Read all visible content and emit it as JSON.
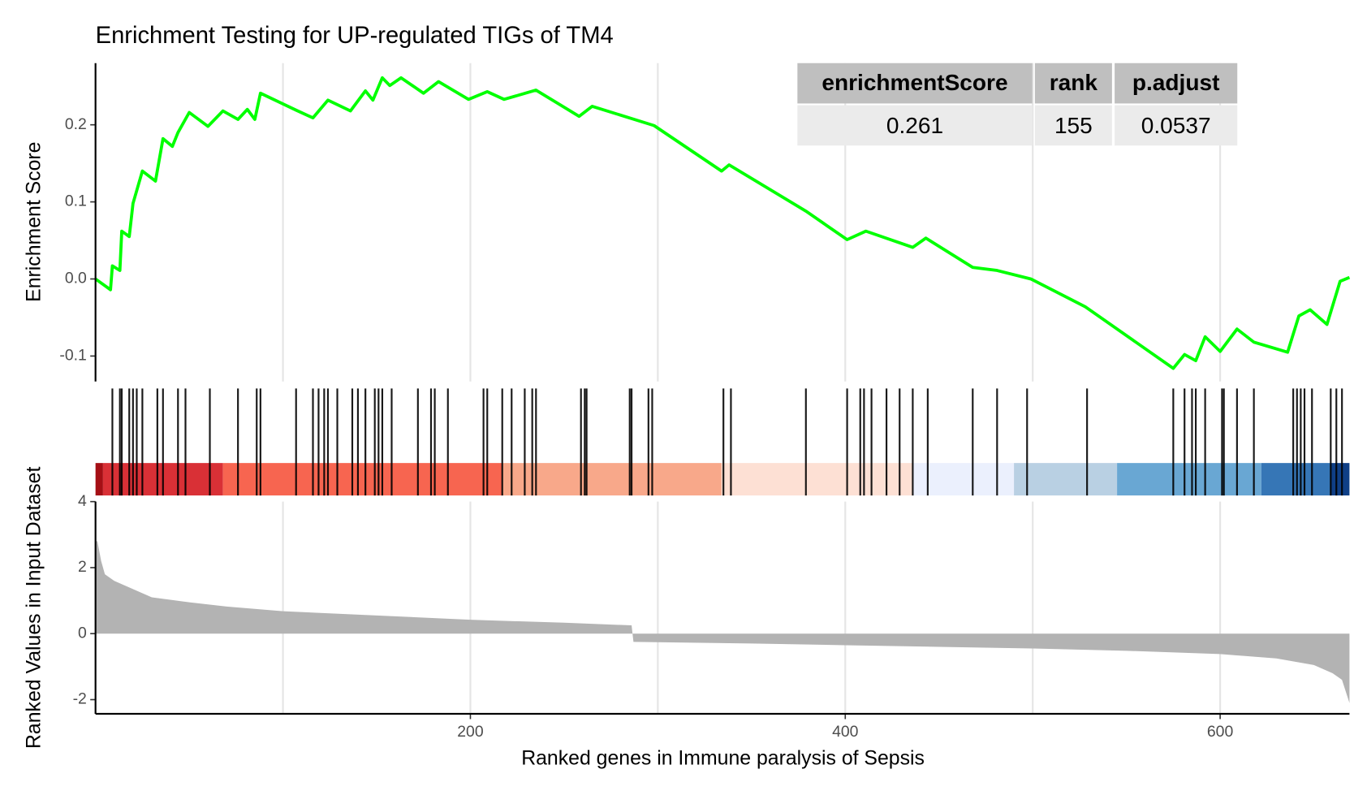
{
  "chart_data": {
    "type": "gsea",
    "title": "Enrichment Testing for UP-regulated TIGs of TM4",
    "x_label": "Ranked genes in Immune paralysis of Sepsis",
    "xlim": [
      0,
      669
    ],
    "xticks": [
      200,
      400,
      600
    ],
    "x_gridlines": [
      100,
      200,
      300,
      400,
      500,
      600
    ],
    "es_panel": {
      "y_label": "Enrichment Score",
      "ylim": [
        -0.133,
        0.28
      ],
      "yticks": [
        -0.1,
        {
          "value": 0,
          "label": "0.0"
        },
        0.1,
        0.2
      ],
      "color": "#00ff00",
      "x": [
        0,
        8,
        9,
        13,
        14,
        18,
        20,
        25,
        32,
        36,
        41,
        44,
        50,
        60,
        68,
        76,
        81,
        85,
        88,
        107,
        116,
        124,
        136,
        144,
        148,
        153,
        157,
        163,
        175,
        183,
        199,
        209,
        218,
        235,
        258,
        265,
        298,
        334,
        338,
        379,
        401,
        411,
        436,
        443,
        468,
        481,
        499,
        528,
        575,
        581,
        587,
        592,
        600,
        609,
        618,
        636,
        642,
        648,
        657,
        664,
        669
      ],
      "values": [
        0.0,
        -0.014,
        0.017,
        0.011,
        0.062,
        0.055,
        0.098,
        0.14,
        0.127,
        0.182,
        0.172,
        0.19,
        0.216,
        0.198,
        0.218,
        0.207,
        0.22,
        0.207,
        0.241,
        0.219,
        0.209,
        0.232,
        0.218,
        0.244,
        0.232,
        0.261,
        0.251,
        0.261,
        0.241,
        0.256,
        0.233,
        0.243,
        0.233,
        0.245,
        0.211,
        0.224,
        0.199,
        0.14,
        0.148,
        0.088,
        0.051,
        0.062,
        0.041,
        0.053,
        0.015,
        0.011,
        0.0,
        -0.036,
        -0.116,
        -0.098,
        -0.106,
        -0.075,
        -0.094,
        -0.065,
        -0.082,
        -0.095,
        -0.048,
        -0.04,
        -0.059,
        -0.003,
        0.002
      ]
    },
    "hits": {
      "color": "#000000",
      "x": [
        9,
        13,
        14,
        18,
        20,
        22,
        25,
        33,
        36,
        44,
        48,
        61,
        76,
        86,
        88,
        107,
        116,
        119,
        122,
        124,
        129,
        137,
        140,
        144,
        149,
        151,
        153,
        158,
        172,
        179,
        181,
        188,
        207,
        209,
        217,
        222,
        229,
        233,
        235,
        259,
        261,
        262,
        285,
        286,
        295,
        297,
        335,
        339,
        379,
        401,
        408,
        410,
        414,
        422,
        429,
        436,
        444,
        468,
        481,
        497,
        529,
        575,
        581,
        585,
        587,
        592,
        601,
        602,
        609,
        618,
        639,
        641,
        643,
        645,
        649,
        659,
        662,
        665
      ]
    },
    "color_bands": {
      "edges": [
        0,
        4,
        68,
        217,
        334,
        436,
        490,
        545,
        622,
        659,
        669
      ],
      "colors": [
        "#a50f15",
        "#d93036",
        "#f76550",
        "#f8a88a",
        "#fde0d4",
        "#ebf0fd",
        "#b9d0e3",
        "#69a7d3",
        "#3676b6",
        "#0f3f86"
      ]
    },
    "rank_panel": {
      "y_label": "Ranked Values in Input Dataset",
      "ylim": [
        -2.43,
        4
      ],
      "yticks": [
        -2,
        0,
        2,
        4
      ],
      "color": "#b3b3b3",
      "x": [
        0,
        1,
        3,
        5,
        10,
        20,
        30,
        50,
        70,
        100,
        150,
        200,
        250,
        286,
        287,
        350,
        400,
        450,
        500,
        550,
        600,
        630,
        650,
        660,
        665,
        669
      ],
      "values": [
        2.8,
        2.8,
        2.2,
        1.8,
        1.6,
        1.35,
        1.1,
        0.95,
        0.82,
        0.68,
        0.55,
        0.42,
        0.33,
        0.25,
        -0.25,
        -0.3,
        -0.35,
        -0.4,
        -0.45,
        -0.52,
        -0.62,
        -0.75,
        -0.95,
        -1.2,
        -1.4,
        -2.1
      ]
    },
    "table": {
      "columns": [
        "enrichmentScore",
        "rank",
        "p.adjust"
      ],
      "rows": [
        [
          0.261,
          155,
          0.0537
        ]
      ]
    }
  }
}
